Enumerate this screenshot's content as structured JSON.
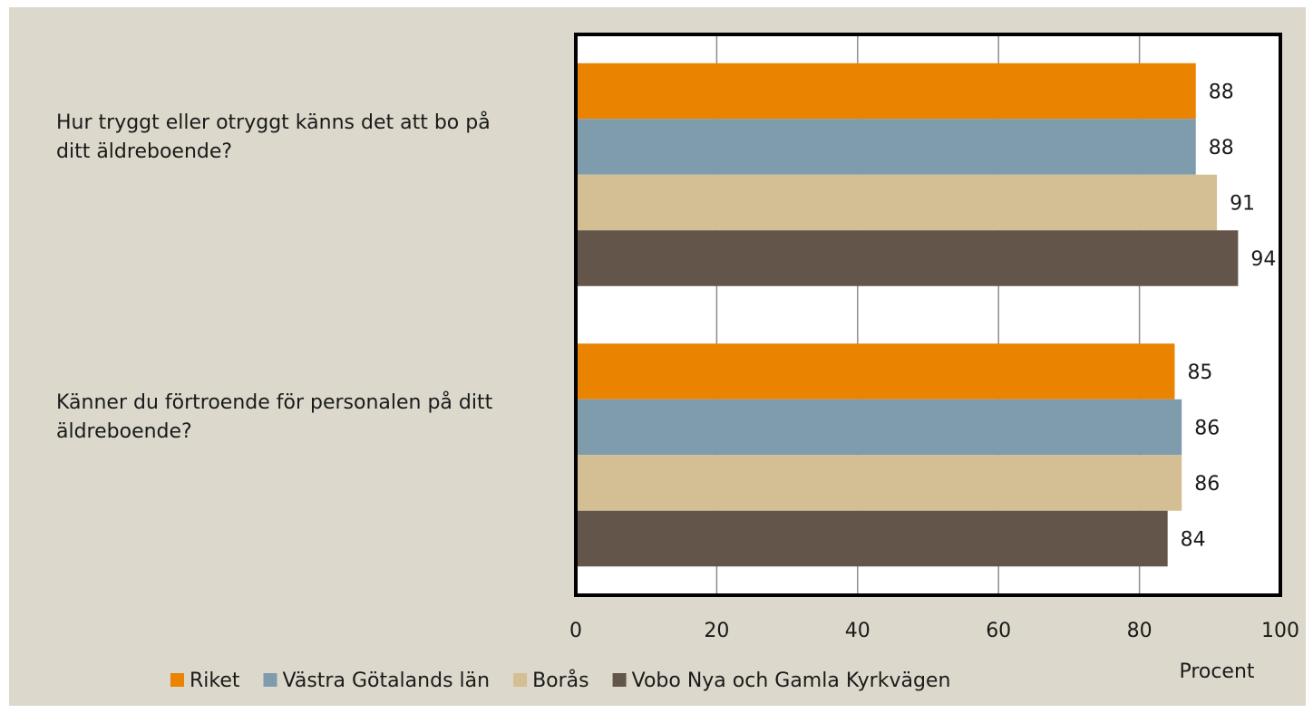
{
  "chart_data": {
    "type": "bar",
    "orientation": "horizontal",
    "categories": [
      "Hur tryggt eller otryggt känns det att bo på ditt äldreboende?",
      "Känner du förtroende för personalen på ditt äldreboende?"
    ],
    "series": [
      {
        "name": "Riket",
        "color": "#e98300",
        "values": [
          88,
          85
        ]
      },
      {
        "name": "Västra Götalands län",
        "color": "#7f9cad",
        "values": [
          88,
          86
        ]
      },
      {
        "name": "Borås",
        "color": "#d4bf94",
        "values": [
          91,
          86
        ]
      },
      {
        "name": "Vobo Nya och Gamla Kyrkvägen",
        "color": "#63554a",
        "values": [
          94,
          84
        ]
      }
    ],
    "xlabel": "Procent",
    "xlim": [
      0,
      100
    ],
    "xticks": [
      0,
      20,
      40,
      60,
      80,
      100
    ],
    "grid": true,
    "legend": "bottom"
  }
}
